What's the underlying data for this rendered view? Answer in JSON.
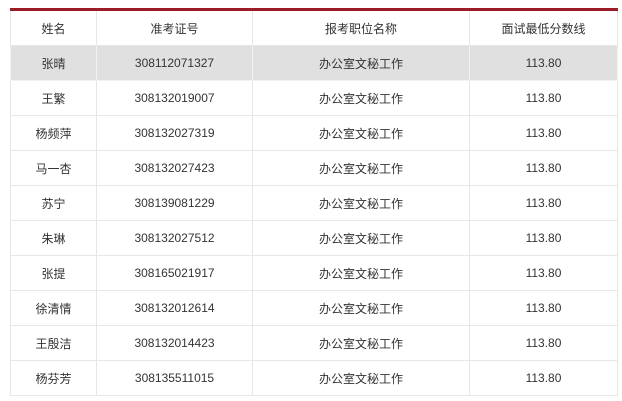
{
  "colors": {
    "top_border": "#9b1b26",
    "highlight_row_bg": "#e0e0e0",
    "cell_border": "#e7e7e7",
    "text": "#333333"
  },
  "table": {
    "columns": [
      {
        "key": "name",
        "label": "姓名"
      },
      {
        "key": "ticket",
        "label": "准考证号"
      },
      {
        "key": "position",
        "label": "报考职位名称"
      },
      {
        "key": "score",
        "label": "面试最低分数线"
      }
    ],
    "highlighted_row_index": 0,
    "rows": [
      {
        "name": "张晴",
        "ticket": "308112071327",
        "position": "办公室文秘工作",
        "score": "113.80"
      },
      {
        "name": "王繁",
        "ticket": "308132019007",
        "position": "办公室文秘工作",
        "score": "113.80"
      },
      {
        "name": "杨频萍",
        "ticket": "308132027319",
        "position": "办公室文秘工作",
        "score": "113.80"
      },
      {
        "name": "马一杏",
        "ticket": "308132027423",
        "position": "办公室文秘工作",
        "score": "113.80"
      },
      {
        "name": "苏宁",
        "ticket": "308139081229",
        "position": "办公室文秘工作",
        "score": "113.80"
      },
      {
        "name": "朱琳",
        "ticket": "308132027512",
        "position": "办公室文秘工作",
        "score": "113.80"
      },
      {
        "name": "张提",
        "ticket": "308165021917",
        "position": "办公室文秘工作",
        "score": "113.80"
      },
      {
        "name": "徐清情",
        "ticket": "308132012614",
        "position": "办公室文秘工作",
        "score": "113.80"
      },
      {
        "name": "王殷洁",
        "ticket": "308132014423",
        "position": "办公室文秘工作",
        "score": "113.80"
      },
      {
        "name": "杨芬芳",
        "ticket": "308135511015",
        "position": "办公室文秘工作",
        "score": "113.80"
      }
    ]
  }
}
